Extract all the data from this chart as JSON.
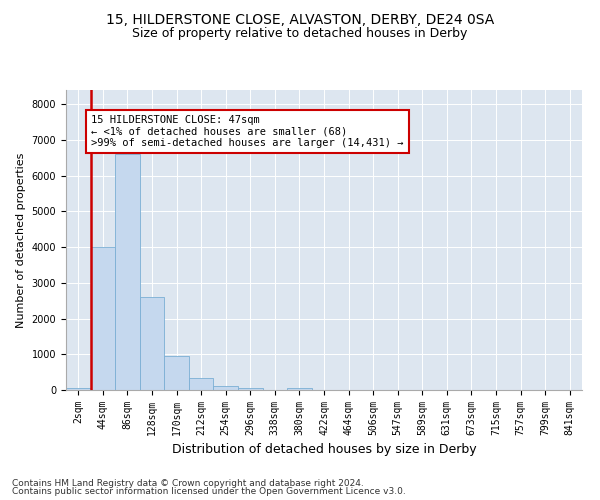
{
  "title1": "15, HILDERSTONE CLOSE, ALVASTON, DERBY, DE24 0SA",
  "title2": "Size of property relative to detached houses in Derby",
  "xlabel": "Distribution of detached houses by size in Derby",
  "ylabel": "Number of detached properties",
  "bin_labels": [
    "2sqm",
    "44sqm",
    "86sqm",
    "128sqm",
    "170sqm",
    "212sqm",
    "254sqm",
    "296sqm",
    "338sqm",
    "380sqm",
    "422sqm",
    "464sqm",
    "506sqm",
    "547sqm",
    "589sqm",
    "631sqm",
    "673sqm",
    "715sqm",
    "757sqm",
    "799sqm",
    "841sqm"
  ],
  "bar_heights": [
    68,
    4000,
    6600,
    2600,
    950,
    330,
    120,
    70,
    5,
    70,
    5,
    0,
    0,
    0,
    0,
    0,
    0,
    0,
    0,
    0,
    0
  ],
  "bar_color": "#c5d8ee",
  "bar_edge_color": "#7bafd4",
  "vline_x": 0.5,
  "vline_color": "#cc0000",
  "annotation_text": "15 HILDERSTONE CLOSE: 47sqm\n← <1% of detached houses are smaller (68)\n>99% of semi-detached houses are larger (14,431) →",
  "annotation_box_color": "#cc0000",
  "ylim": [
    0,
    8400
  ],
  "yticks": [
    0,
    1000,
    2000,
    3000,
    4000,
    5000,
    6000,
    7000,
    8000
  ],
  "background_color": "#dde6f0",
  "footer1": "Contains HM Land Registry data © Crown copyright and database right 2024.",
  "footer2": "Contains public sector information licensed under the Open Government Licence v3.0.",
  "title1_fontsize": 10,
  "title2_fontsize": 9,
  "xlabel_fontsize": 9,
  "ylabel_fontsize": 8,
  "tick_fontsize": 7,
  "ann_fontsize": 7.5,
  "footer_fontsize": 6.5
}
